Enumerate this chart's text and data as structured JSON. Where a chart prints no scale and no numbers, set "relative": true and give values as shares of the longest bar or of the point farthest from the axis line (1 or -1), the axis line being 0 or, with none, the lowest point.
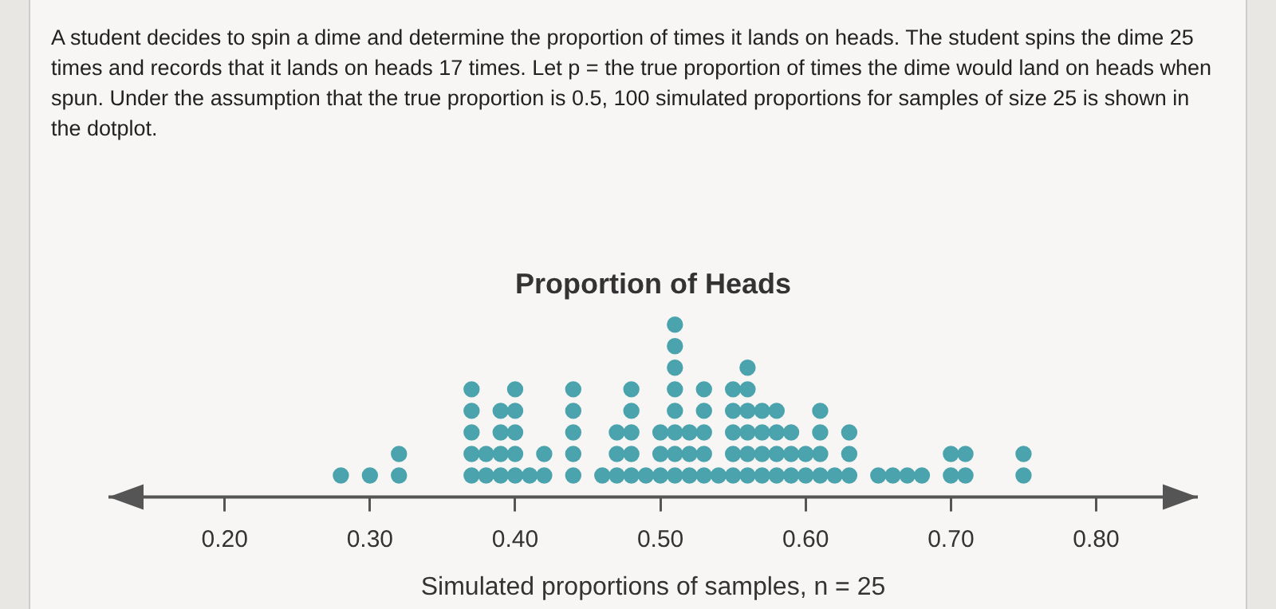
{
  "chart_data": {
    "type": "scatter",
    "title": "Proportion of Heads",
    "xlabel": "Simulated proportions of samples, n = 25",
    "annotations": [
      "A student decides to spin a dime and determine the proportion of times it lands on heads. The student spins the dime 25 times and records that it lands on heads 17 times. Let p = the true proportion of times the dime would land on heads when spun. Under the assumption that the true proportion is 0.5, 100 simulated proportions for samples of size 25 is shown in the dotplot."
    ],
    "series": [
      {
        "color": "#4aa3ad",
        "x": [
          0.28,
          0.3,
          0.32,
          0.32,
          0.37,
          0.37,
          0.37,
          0.37,
          0.37,
          0.38,
          0.38,
          0.39,
          0.39,
          0.39,
          0.39,
          0.4,
          0.4,
          0.4,
          0.4,
          0.4,
          0.41,
          0.42,
          0.42,
          0.44,
          0.44,
          0.44,
          0.44,
          0.44,
          0.46,
          0.47,
          0.47,
          0.47,
          0.48,
          0.48,
          0.48,
          0.48,
          0.48,
          0.49,
          0.5,
          0.5,
          0.5,
          0.51,
          0.51,
          0.51,
          0.51,
          0.51,
          0.51,
          0.51,
          0.51,
          0.52,
          0.52,
          0.52,
          0.53,
          0.53,
          0.53,
          0.53,
          0.53,
          0.54,
          0.55,
          0.55,
          0.55,
          0.55,
          0.55,
          0.56,
          0.56,
          0.56,
          0.56,
          0.56,
          0.56,
          0.57,
          0.57,
          0.57,
          0.57,
          0.58,
          0.58,
          0.58,
          0.58,
          0.59,
          0.59,
          0.59,
          0.6,
          0.6,
          0.61,
          0.61,
          0.61,
          0.61,
          0.62,
          0.63,
          0.63,
          0.63,
          0.65,
          0.66,
          0.67,
          0.68,
          0.7,
          0.7,
          0.71,
          0.71,
          0.75,
          0.75
        ],
        "values": [
          0.125,
          0.125,
          0.125,
          0.25,
          0.125,
          0.25,
          0.375,
          0.5,
          0.625,
          0.125,
          0.25,
          0.125,
          0.25,
          0.375,
          0.5,
          0.125,
          0.25,
          0.375,
          0.5,
          0.625,
          0.125,
          0.125,
          0.25,
          0.125,
          0.25,
          0.375,
          0.5,
          0.625,
          0.125,
          0.125,
          0.25,
          0.375,
          0.125,
          0.25,
          0.375,
          0.5,
          0.625,
          0.125,
          0.125,
          0.25,
          0.375,
          0.125,
          0.25,
          0.375,
          0.5,
          0.625,
          0.75,
          0.875,
          1,
          0.125,
          0.25,
          0.375,
          0.125,
          0.25,
          0.375,
          0.5,
          0.625,
          0.125,
          0.125,
          0.25,
          0.375,
          0.5,
          0.625,
          0.125,
          0.25,
          0.375,
          0.5,
          0.625,
          0.75,
          0.125,
          0.25,
          0.375,
          0.5,
          0.125,
          0.25,
          0.375,
          0.5,
          0.125,
          0.25,
          0.375,
          0.125,
          0.25,
          0.125,
          0.25,
          0.375,
          0.5,
          0.125,
          0.125,
          0.25,
          0.375,
          0.125,
          0.125,
          0.125,
          0.125,
          0.125,
          0.25,
          0.125,
          0.25,
          0.125,
          0.25
        ]
      }
    ],
    "xlim": [
      0.12,
      0.87
    ],
    "xticks": [
      {
        "value": 0.2,
        "label": "0.20"
      },
      {
        "value": 0.3,
        "label": "0.30"
      },
      {
        "value": 0.4,
        "label": "0.40"
      },
      {
        "value": 0.5,
        "label": "0.50"
      },
      {
        "value": 0.6,
        "label": "0.60"
      },
      {
        "value": 0.7,
        "label": "0.70"
      },
      {
        "value": 0.8,
        "label": "0.80"
      }
    ],
    "relative": true,
    "tick_labels": "x",
    "grid": false,
    "legend": false,
    "marker": "circle"
  }
}
